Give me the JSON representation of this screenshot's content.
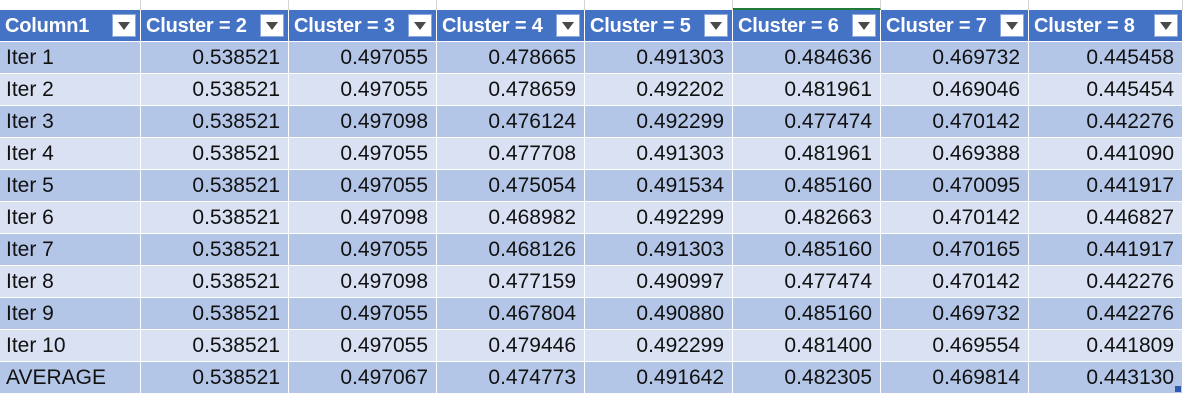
{
  "table": {
    "headers": [
      "Column1",
      "Cluster = 2",
      "Cluster = 3",
      "Cluster = 4",
      "Cluster = 5",
      "Cluster = 6",
      "Cluster = 7",
      "Cluster = 8"
    ],
    "rows": [
      [
        "Iter 1",
        "0.538521",
        "0.497055",
        "0.478665",
        "0.491303",
        "0.484636",
        "0.469732",
        "0.445458"
      ],
      [
        "Iter 2",
        "0.538521",
        "0.497055",
        "0.478659",
        "0.492202",
        "0.481961",
        "0.469046",
        "0.445454"
      ],
      [
        "Iter 3",
        "0.538521",
        "0.497098",
        "0.476124",
        "0.492299",
        "0.477474",
        "0.470142",
        "0.442276"
      ],
      [
        "Iter 4",
        "0.538521",
        "0.497055",
        "0.477708",
        "0.491303",
        "0.481961",
        "0.469388",
        "0.441090"
      ],
      [
        "Iter 5",
        "0.538521",
        "0.497055",
        "0.475054",
        "0.491534",
        "0.485160",
        "0.470095",
        "0.441917"
      ],
      [
        "Iter 6",
        "0.538521",
        "0.497098",
        "0.468982",
        "0.492299",
        "0.482663",
        "0.470142",
        "0.446827"
      ],
      [
        "Iter 7",
        "0.538521",
        "0.497055",
        "0.468126",
        "0.491303",
        "0.485160",
        "0.470165",
        "0.441917"
      ],
      [
        "Iter 8",
        "0.538521",
        "0.497098",
        "0.477159",
        "0.490997",
        "0.477474",
        "0.470142",
        "0.442276"
      ],
      [
        "Iter 9",
        "0.538521",
        "0.497055",
        "0.467804",
        "0.490880",
        "0.485160",
        "0.469732",
        "0.442276"
      ],
      [
        "Iter 10",
        "0.538521",
        "0.497055",
        "0.479446",
        "0.492299",
        "0.481400",
        "0.469554",
        "0.441809"
      ],
      [
        "AVERAGE",
        "0.538521",
        "0.497067",
        "0.474773",
        "0.491642",
        "0.482305",
        "0.469814",
        "0.443130"
      ]
    ]
  },
  "colors": {
    "header_bg": "#4472c4",
    "band_dark": "#b4c6e7",
    "band_light": "#d9e1f2",
    "selected_column_marker": "#1f7a3a"
  },
  "icons": {
    "filter_dropdown": "chevron-down-icon"
  }
}
